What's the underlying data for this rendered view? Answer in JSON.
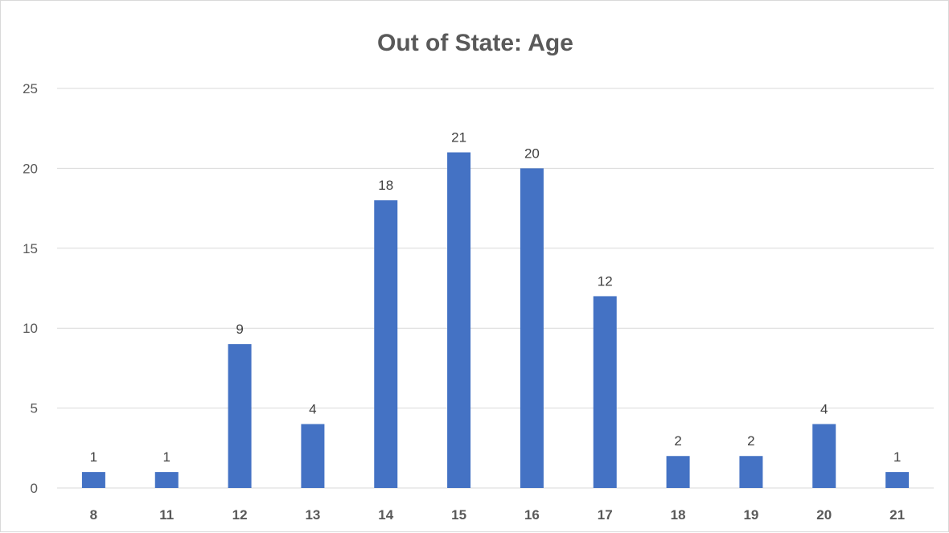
{
  "chart_data": {
    "type": "bar",
    "title": "Out of State: Age",
    "xlabel": "",
    "ylabel": "",
    "categories": [
      "8",
      "11",
      "12",
      "13",
      "14",
      "15",
      "16",
      "17",
      "18",
      "19",
      "20",
      "21"
    ],
    "values": [
      1,
      1,
      9,
      4,
      18,
      21,
      20,
      12,
      2,
      2,
      4,
      1
    ],
    "ylim": [
      0,
      25
    ],
    "yticks": [
      0,
      5,
      10,
      15,
      20,
      25
    ],
    "grid": true,
    "legend": "none",
    "data_labels": true,
    "bar_color": "#4472c4",
    "grid_color": "#d9d9d9"
  }
}
